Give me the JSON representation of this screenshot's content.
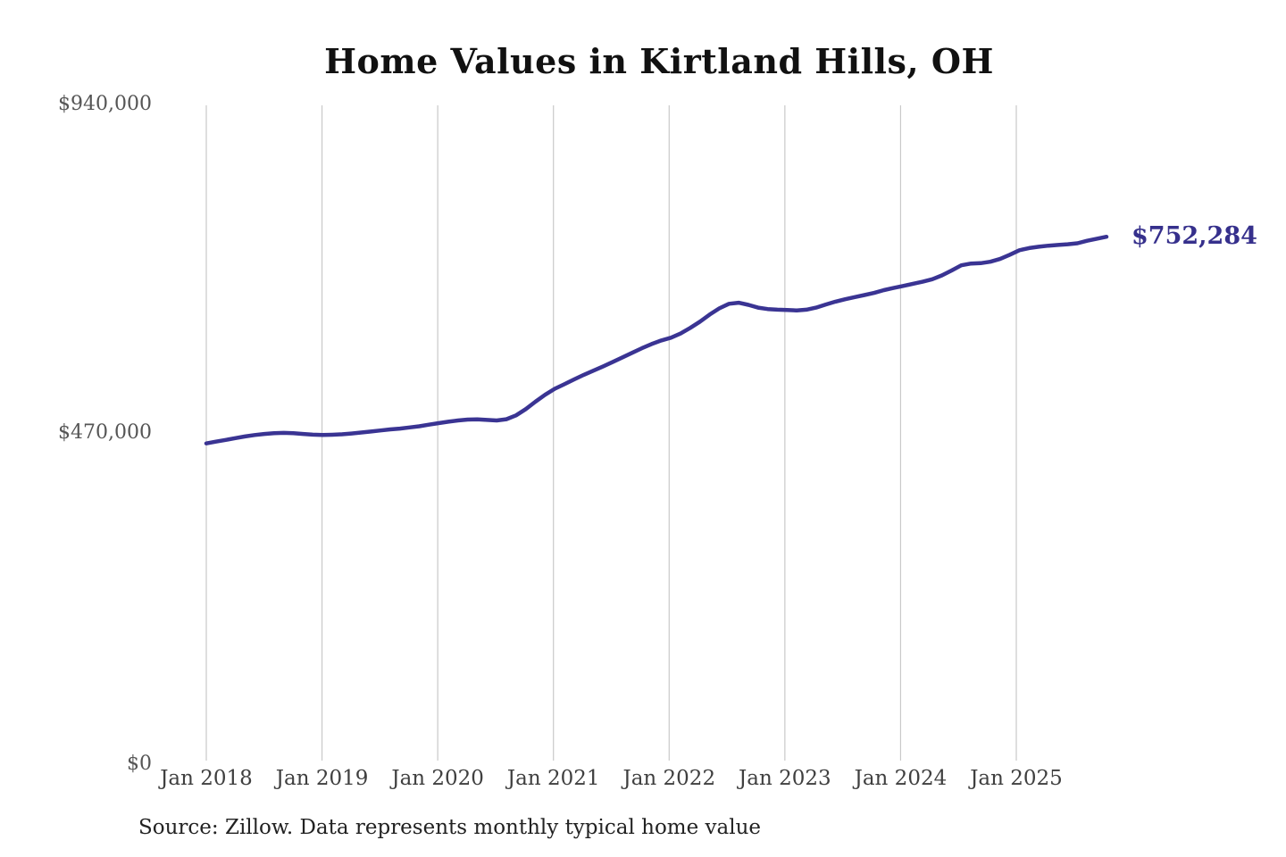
{
  "chart": {
    "background": "#ffffff",
    "line_color": "#3a3493",
    "grid_color": "#c9c9c9",
    "end_label_color": "#36308c",
    "source_note": "Source: Zillow. Data represents monthly typical home value"
  },
  "chart_data": {
    "type": "line",
    "title": "Home Values in Kirtland Hills, OH",
    "series_name": "Monthly typical home value",
    "x_start": "2018-01",
    "x_end": "2025-10",
    "x_step": "monthly",
    "x_tick_labels": [
      "Jan 2018",
      "Jan 2019",
      "Jan 2020",
      "Jan 2021",
      "Jan 2022",
      "Jan 2023",
      "Jan 2024",
      "Jan 2025"
    ],
    "y_tick_labels": [
      "$0",
      "$470,000",
      "$940,000"
    ],
    "ylim": [
      0,
      940000
    ],
    "grid": "vertical-only",
    "legend": "none",
    "end_label": "$752,284",
    "end_value": 752284,
    "values": [
      457000,
      459500,
      462000,
      464500,
      467000,
      469000,
      470500,
      471500,
      472000,
      471500,
      470500,
      469500,
      469000,
      469300,
      470000,
      471200,
      472500,
      474000,
      475500,
      477000,
      478200,
      479800,
      481500,
      483800,
      486000,
      488000,
      489800,
      491000,
      491300,
      490500,
      489800,
      491500,
      497000,
      506000,
      516500,
      526500,
      535000,
      541500,
      548500,
      555000,
      561000,
      567000,
      573500,
      580000,
      586500,
      593000,
      599000,
      604000,
      608000,
      614000,
      622000,
      631000,
      641000,
      650000,
      656500,
      658000,
      655000,
      651000,
      649000,
      648000,
      647500,
      647000,
      648000,
      651000,
      655500,
      659500,
      663000,
      666000,
      669000,
      672000,
      676000,
      679000,
      682000,
      685000,
      688000,
      691500,
      697000,
      704000,
      711500,
      714000,
      714500,
      716500,
      720500,
      726500,
      733000,
      736000,
      738000,
      739500,
      740500,
      741500,
      743000,
      746500,
      749500,
      752284
    ]
  }
}
